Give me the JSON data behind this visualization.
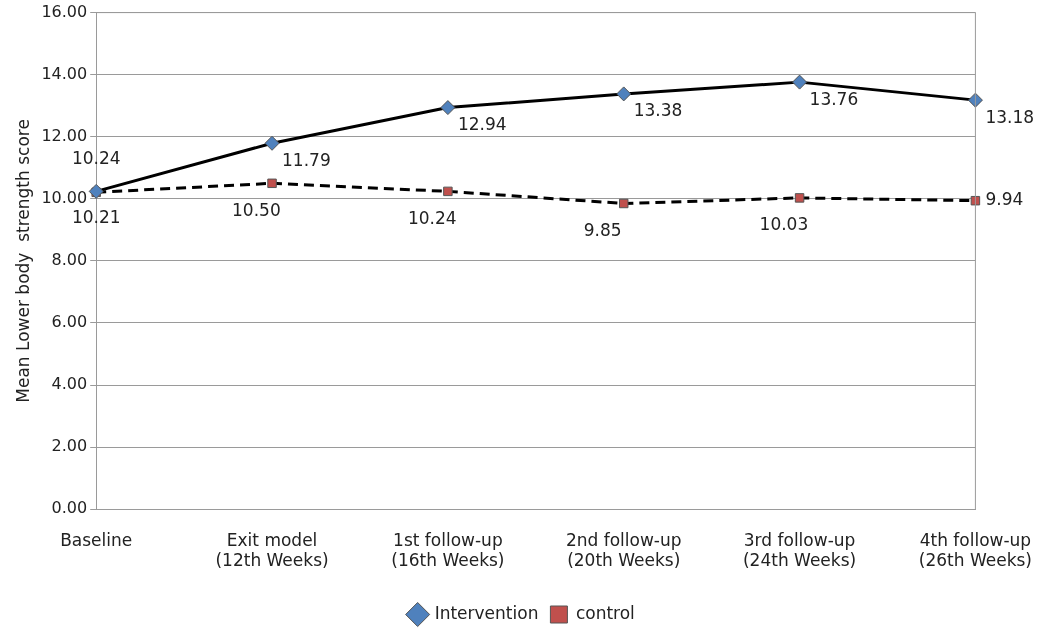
{
  "chart_data": {
    "type": "line",
    "ylabel": "Mean Lower body  strength score",
    "categories": [
      "Baseline",
      "Exit model\n(12th Weeks)",
      "1st follow-up\n(16th Weeks)",
      "2nd follow-up\n(20th Weeks)",
      "3rd follow-up\n(24th Weeks)",
      "4th follow-up\n(26th Weeks)"
    ],
    "series": [
      {
        "name": "Intervention",
        "color": "#4f81bd",
        "marker": "diamond",
        "line_style": "solid",
        "values": [
          10.24,
          11.79,
          12.94,
          13.38,
          13.76,
          13.18
        ],
        "value_labels": [
          "10.24",
          "11.79",
          "12.94",
          "13.38",
          "13.76",
          "13.18"
        ]
      },
      {
        "name": "control",
        "color": "#c0504d",
        "marker": "square",
        "line_style": "dashed",
        "values": [
          10.21,
          10.5,
          10.24,
          9.85,
          10.03,
          9.94
        ],
        "value_labels": [
          "10.21",
          "10.50",
          "10.24",
          "9.85",
          "10.03",
          "9.94"
        ]
      }
    ],
    "ylim": [
      0,
      16
    ],
    "yticks": [
      {
        "value": 0,
        "label": "0.00"
      },
      {
        "value": 2,
        "label": "2.00"
      },
      {
        "value": 4,
        "label": "4.00"
      },
      {
        "value": 6,
        "label": "6.00"
      },
      {
        "value": 8,
        "label": "8.00"
      },
      {
        "value": 10,
        "label": "10.00"
      },
      {
        "value": 12,
        "label": "12.00"
      },
      {
        "value": 14,
        "label": "14.00"
      },
      {
        "value": 16,
        "label": "16.00"
      }
    ],
    "grid": "y",
    "legend": "bottom"
  }
}
